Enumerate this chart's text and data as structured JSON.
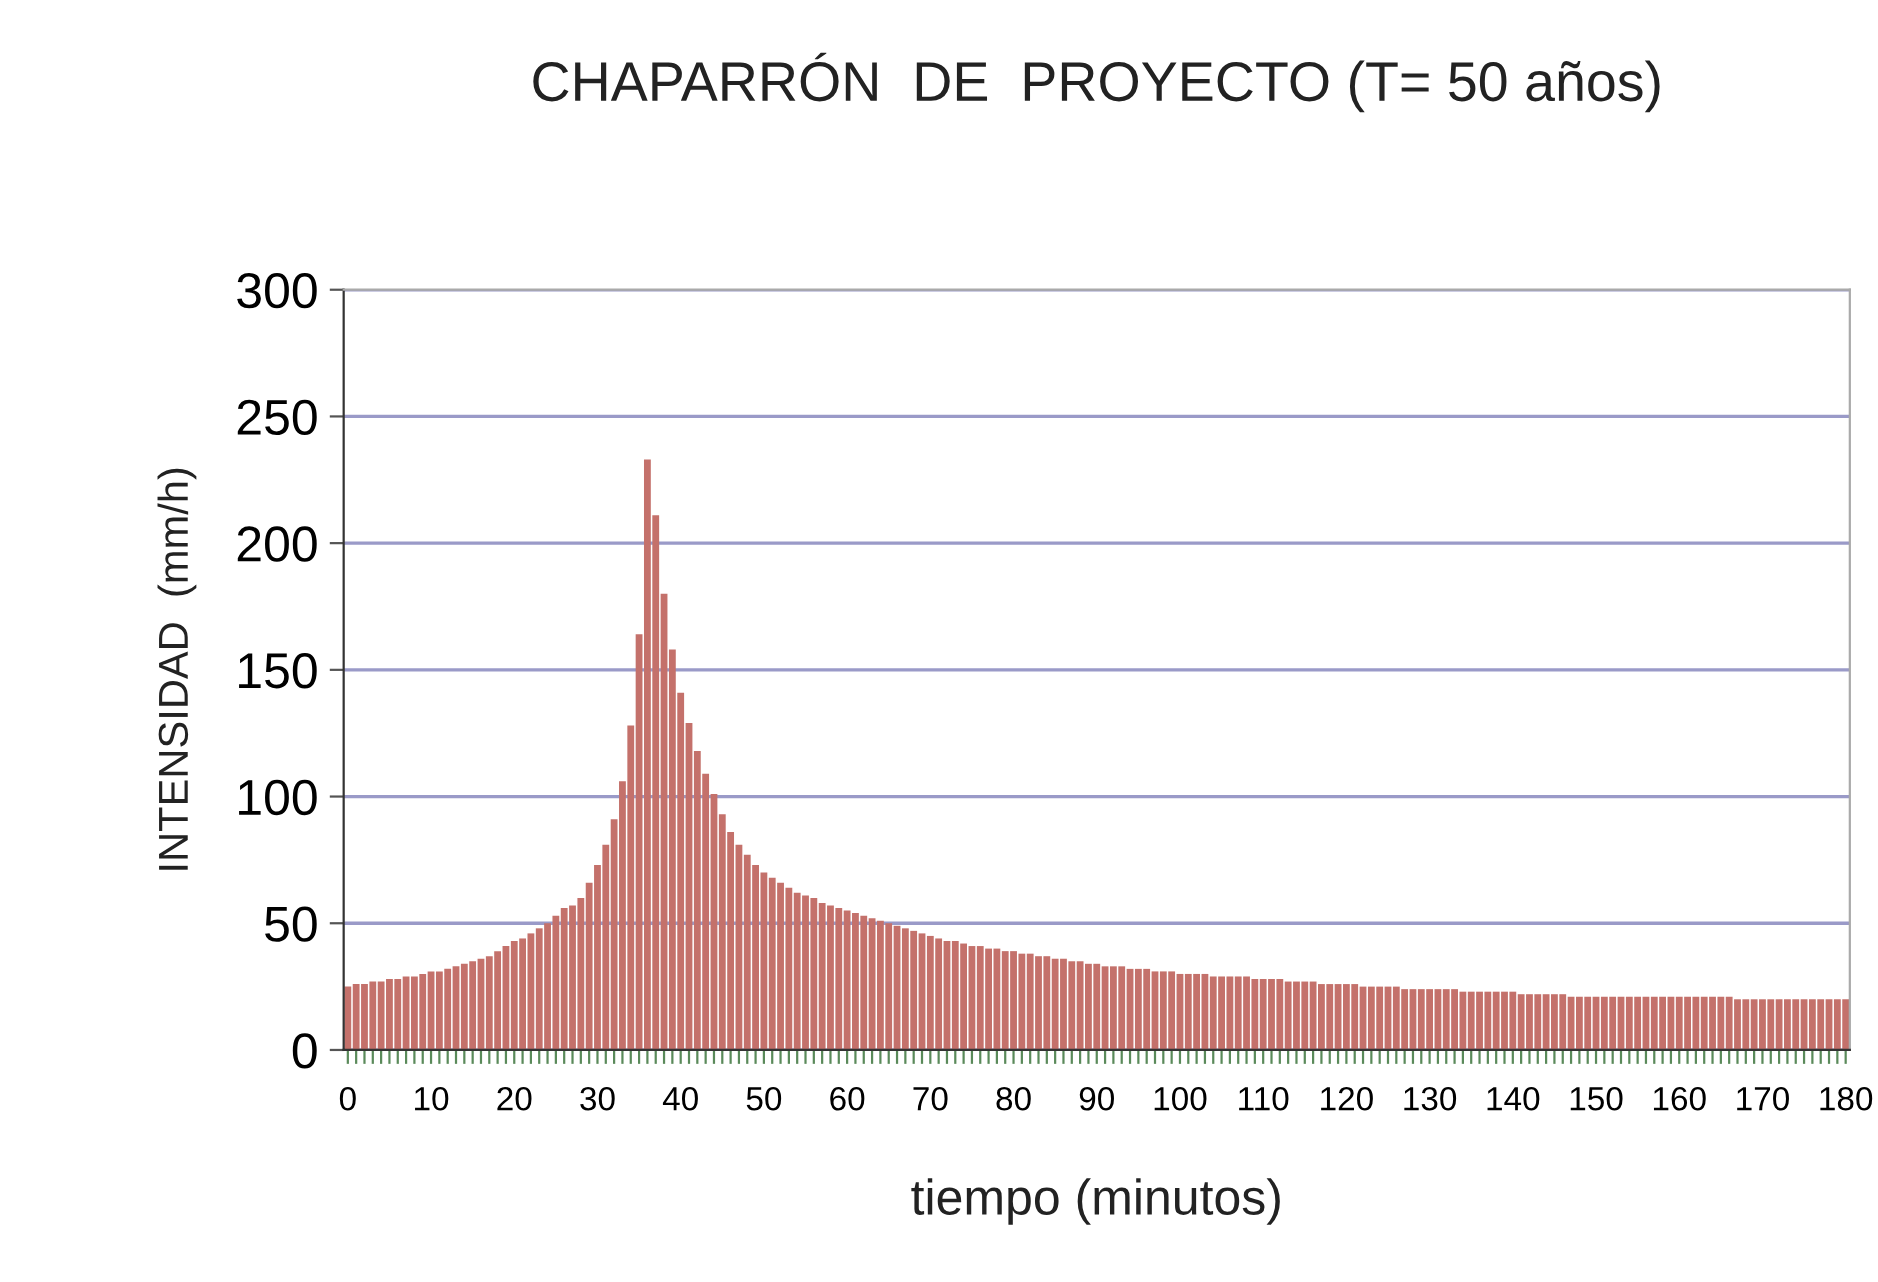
{
  "chart_data": {
    "type": "bar",
    "title": "CHAPARRÓN  DE  PROYECTO (T= 50 años)",
    "xlabel": "tiempo (minutos)",
    "ylabel": "INTENSIDAD  (mm/h)",
    "categories": [
      "0",
      null,
      null,
      null,
      null,
      null,
      null,
      null,
      null,
      null,
      "10",
      null,
      null,
      null,
      null,
      null,
      null,
      null,
      null,
      null,
      "20",
      null,
      null,
      null,
      null,
      null,
      null,
      null,
      null,
      null,
      "30",
      null,
      null,
      null,
      null,
      null,
      null,
      null,
      null,
      null,
      "40",
      null,
      null,
      null,
      null,
      null,
      null,
      null,
      null,
      null,
      "50",
      null,
      null,
      null,
      null,
      null,
      null,
      null,
      null,
      null,
      "60",
      null,
      null,
      null,
      null,
      null,
      null,
      null,
      null,
      null,
      "70",
      null,
      null,
      null,
      null,
      null,
      null,
      null,
      null,
      null,
      "80",
      null,
      null,
      null,
      null,
      null,
      null,
      null,
      null,
      null,
      "90",
      null,
      null,
      null,
      null,
      null,
      null,
      null,
      null,
      null,
      "100",
      null,
      null,
      null,
      null,
      null,
      null,
      null,
      null,
      null,
      "110",
      null,
      null,
      null,
      null,
      null,
      null,
      null,
      null,
      null,
      "120",
      null,
      null,
      null,
      null,
      null,
      null,
      null,
      null,
      null,
      "130",
      null,
      null,
      null,
      null,
      null,
      null,
      null,
      null,
      null,
      "140",
      null,
      null,
      null,
      null,
      null,
      null,
      null,
      null,
      null,
      "150",
      null,
      null,
      null,
      null,
      null,
      null,
      null,
      null,
      null,
      "160",
      null,
      null,
      null,
      null,
      null,
      null,
      null,
      null,
      null,
      "170",
      null,
      null,
      null,
      null,
      null,
      null,
      null,
      null,
      null,
      "180"
    ],
    "values": [
      25,
      26,
      26,
      27,
      27,
      28,
      28,
      29,
      29,
      30,
      31,
      31,
      32,
      33,
      34,
      35,
      36,
      37,
      39,
      41,
      43,
      44,
      46,
      48,
      50,
      53,
      56,
      57,
      60,
      66,
      73,
      81,
      91,
      106,
      128,
      164,
      233,
      211,
      180,
      158,
      141,
      129,
      118,
      109,
      101,
      93,
      86,
      81,
      77,
      73,
      70,
      68,
      66,
      64,
      62,
      61,
      60,
      58,
      57,
      56,
      55,
      54,
      53,
      52,
      51,
      50,
      49,
      48,
      47,
      46,
      45,
      44,
      43,
      43,
      42,
      41,
      41,
      40,
      40,
      39,
      39,
      38,
      38,
      37,
      37,
      36,
      36,
      35,
      35,
      34,
      34,
      33,
      33,
      33,
      32,
      32,
      32,
      31,
      31,
      31,
      30,
      30,
      30,
      30,
      29,
      29,
      29,
      29,
      29,
      28,
      28,
      28,
      28,
      27,
      27,
      27,
      27,
      26,
      26,
      26,
      26,
      26,
      25,
      25,
      25,
      25,
      25,
      24,
      24,
      24,
      24,
      24,
      24,
      24,
      23,
      23,
      23,
      23,
      23,
      23,
      23,
      22,
      22,
      22,
      22,
      22,
      22,
      21,
      21,
      21,
      21,
      21,
      21,
      21,
      21,
      21,
      21,
      21,
      21,
      21,
      21,
      21,
      21,
      21,
      21,
      21,
      21,
      20,
      20,
      20,
      20,
      20,
      20,
      20,
      20,
      20,
      20,
      20,
      20,
      20,
      20
    ],
    "color": "#c4716b",
    "ylim": [
      0,
      300
    ],
    "yticks": [
      0,
      50,
      100,
      150,
      200,
      250,
      300
    ],
    "grid": "y",
    "legend": false
  }
}
